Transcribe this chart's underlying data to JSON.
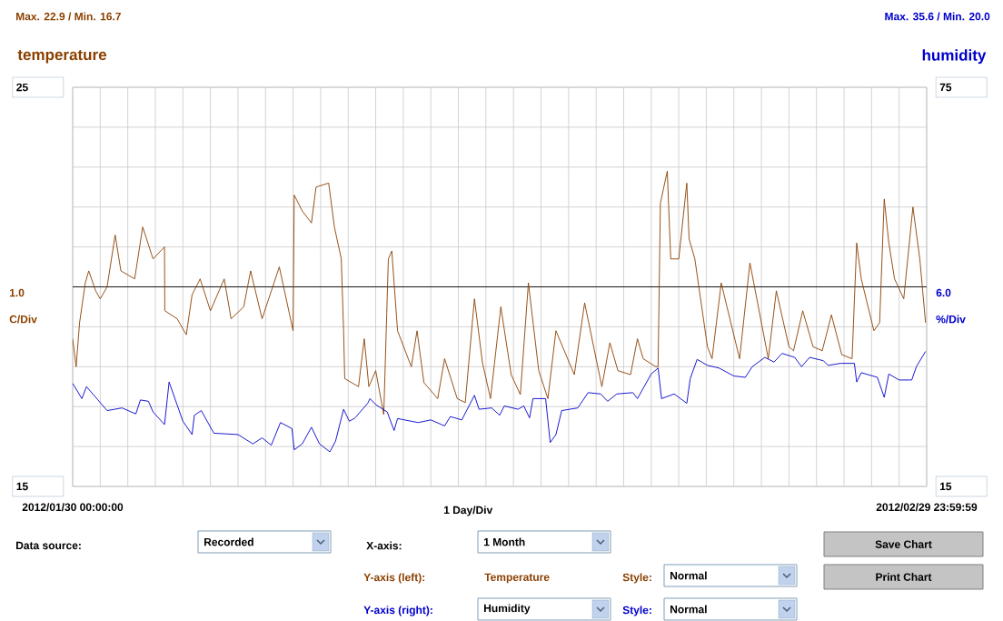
{
  "chart_data": {
    "type": "line",
    "xlabel": "1 Day/Div",
    "ylabel": "temperature",
    "y2label": "humidity",
    "xlim": [
      "2012-01-30T00:00",
      "2012-02-29T23:59"
    ],
    "xticks": [
      {
        "value": "2012-01-30T00:00",
        "label": "2012/01/30 00:00:00"
      },
      {
        "value": "2012-01-31T00:00",
        "label": null
      },
      {
        "value": "2012-02-01T00:00",
        "label": null
      },
      {
        "value": "2012-02-02T00:00",
        "label": null
      },
      {
        "value": "2012-02-03T00:00",
        "label": null
      },
      {
        "value": "2012-02-04T00:00",
        "label": null
      },
      {
        "value": "2012-02-05T00:00",
        "label": null
      },
      {
        "value": "2012-02-06T00:00",
        "label": null
      },
      {
        "value": "2012-02-07T00:00",
        "label": null
      },
      {
        "value": "2012-02-08T00:00",
        "label": null
      },
      {
        "value": "2012-02-09T00:00",
        "label": null
      },
      {
        "value": "2012-02-10T00:00",
        "label": null
      },
      {
        "value": "2012-02-11T00:00",
        "label": null
      },
      {
        "value": "2012-02-12T00:00",
        "label": null
      },
      {
        "value": "2012-02-13T00:00",
        "label": null
      },
      {
        "value": "2012-02-14T00:00",
        "label": null
      },
      {
        "value": "2012-02-15T00:00",
        "label": null
      },
      {
        "value": "2012-02-16T00:00",
        "label": null
      },
      {
        "value": "2012-02-17T00:00",
        "label": null
      },
      {
        "value": "2012-02-18T00:00",
        "label": null
      },
      {
        "value": "2012-02-19T00:00",
        "label": null
      },
      {
        "value": "2012-02-20T00:00",
        "label": null
      },
      {
        "value": "2012-02-21T00:00",
        "label": null
      },
      {
        "value": "2012-02-22T00:00",
        "label": null
      },
      {
        "value": "2012-02-23T00:00",
        "label": null
      },
      {
        "value": "2012-02-24T00:00",
        "label": null
      },
      {
        "value": "2012-02-25T00:00",
        "label": null
      },
      {
        "value": "2012-02-26T00:00",
        "label": null
      },
      {
        "value": "2012-02-27T00:00",
        "label": null
      },
      {
        "value": "2012-02-28T00:00",
        "label": null
      },
      {
        "value": "2012-02-29T00:00",
        "label": null
      },
      {
        "value": "2012-02-29T23:59",
        "label": "2012/02/29 23:59:59"
      }
    ],
    "ylim": [
      15,
      25
    ],
    "yticks": [
      15,
      {
        "value": 16,
        "label": null
      },
      {
        "value": 17,
        "label": null
      },
      {
        "value": 18,
        "label": null
      },
      {
        "value": 19,
        "label": null
      },
      {
        "value": 20,
        "label": null
      },
      {
        "value": 21,
        "label": null
      },
      {
        "value": 22,
        "label": null
      },
      {
        "value": 23,
        "label": null
      },
      {
        "value": 24,
        "label": null
      },
      25
    ],
    "y2lim": [
      15,
      75
    ],
    "y2ticks": [
      15,
      75
    ],
    "grid": true,
    "ref_lines": [
      {
        "axis": "y",
        "value": 20,
        "color": "#000000"
      }
    ],
    "series": [
      {
        "color": "#8b4000",
        "x": [
          "2012-01-30T00:00",
          "2012-01-30T03:00",
          "2012-01-30T06:00",
          "2012-01-30T11:00",
          "2012-01-30T14:00",
          "2012-01-30T20:00",
          "2012-01-31T00:00",
          "2012-01-31T06:00",
          "2012-01-31T13:00",
          "2012-01-31T18:00",
          "2012-02-01T06:00",
          "2012-02-01T13:00",
          "2012-02-01T22:00",
          "2012-02-02T08:00",
          "2012-02-02T08:15",
          "2012-02-02T19:00",
          "2012-02-03T03:00",
          "2012-02-03T08:00",
          "2012-02-03T15:00",
          "2012-02-04T00:00",
          "2012-02-04T12:00",
          "2012-02-04T18:00",
          "2012-02-05T05:00",
          "2012-02-05T11:00",
          "2012-02-05T21:00",
          "2012-02-06T12:00",
          "2012-02-07T00:00",
          "2012-02-07T01:00",
          "2012-02-07T08:00",
          "2012-02-07T16:00",
          "2012-02-07T20:00",
          "2012-02-08T07:00",
          "2012-02-08T12:00",
          "2012-02-08T18:00",
          "2012-02-08T20:00",
          "2012-02-08T21:00",
          "2012-02-09T09:00",
          "2012-02-09T14:00",
          "2012-02-09T18:00",
          "2012-02-10T00:00",
          "2012-02-10T07:00",
          "2012-02-10T11:00",
          "2012-02-10T14:00",
          "2012-02-10T19:00",
          "2012-02-11T07:00",
          "2012-02-11T12:00",
          "2012-02-11T18:00",
          "2012-02-12T06:00",
          "2012-02-12T12:00",
          "2012-02-12T23:00",
          "2012-02-13T06:00",
          "2012-02-13T14:00",
          "2012-02-13T21:00",
          "2012-02-14T04:00",
          "2012-02-14T13:00",
          "2012-02-14T22:00",
          "2012-02-15T06:00",
          "2012-02-15T13:00",
          "2012-02-15T22:00",
          "2012-02-16T06:00",
          "2012-02-16T13:00",
          "2012-02-17T05:00",
          "2012-02-17T14:00",
          "2012-02-18T05:00",
          "2012-02-18T12:00",
          "2012-02-18T19:00",
          "2012-02-19T06:00",
          "2012-02-19T12:00",
          "2012-02-19T17:00",
          "2012-02-20T04:00",
          "2012-02-20T06:00",
          "2012-02-20T08:00",
          "2012-02-20T14:00",
          "2012-02-20T17:00",
          "2012-02-21T00:00",
          "2012-02-21T07:00",
          "2012-02-21T09:00",
          "2012-02-21T14:00",
          "2012-02-22T01:00",
          "2012-02-22T05:00",
          "2012-02-22T13:00",
          "2012-02-22T18:00",
          "2012-02-23T05:00",
          "2012-02-23T14:00",
          "2012-02-24T06:00",
          "2012-02-24T13:00",
          "2012-02-25T00:00",
          "2012-02-25T04:00",
          "2012-02-25T12:00",
          "2012-02-25T21:00",
          "2012-02-26T05:00",
          "2012-02-26T13:00",
          "2012-02-26T22:00",
          "2012-02-27T07:00",
          "2012-02-27T11:00",
          "2012-02-27T15:00",
          "2012-02-28T02:00",
          "2012-02-28T07:00",
          "2012-02-28T11:00",
          "2012-02-28T15:00",
          "2012-02-28T20:00",
          "2012-02-29T04:00",
          "2012-02-29T12:00",
          "2012-02-29T18:00",
          "2012-02-29T23:00"
        ],
        "values": [
          18.7,
          18.0,
          19.1,
          20.1,
          20.4,
          19.9,
          19.7,
          20.0,
          21.3,
          20.4,
          20.2,
          21.5,
          20.7,
          21.0,
          19.4,
          19.2,
          18.8,
          19.8,
          20.2,
          19.4,
          20.2,
          19.2,
          19.5,
          20.4,
          19.2,
          20.5,
          18.9,
          22.3,
          21.9,
          21.6,
          22.5,
          22.6,
          21.5,
          20.7,
          18.9,
          17.7,
          17.5,
          18.7,
          17.5,
          17.9,
          16.8,
          20.7,
          20.9,
          18.9,
          18.0,
          18.9,
          17.6,
          17.2,
          18.2,
          17.2,
          17.1,
          19.7,
          18.1,
          17.2,
          19.5,
          17.8,
          17.3,
          20.1,
          17.9,
          17.2,
          18.9,
          17.8,
          19.6,
          17.5,
          18.6,
          17.9,
          17.8,
          18.7,
          18.2,
          18.0,
          18.0,
          22.1,
          22.9,
          20.7,
          20.7,
          22.6,
          21.2,
          20.7,
          18.5,
          18.2,
          20.1,
          19.5,
          18.2,
          20.6,
          18.2,
          19.9,
          18.5,
          18.4,
          19.4,
          18.5,
          18.4,
          19.3,
          18.3,
          18.2,
          21.1,
          20.2,
          18.9,
          19.1,
          22.2,
          21.1,
          20.2,
          19.7,
          22.0,
          20.7,
          19.1
        ]
      },
      {
        "color": "#0000cc",
        "axis": "y2",
        "x": [
          "2012-01-30T00:00",
          "2012-01-30T08:00",
          "2012-01-30T12:00",
          "2012-01-30T22:00",
          "2012-01-31T06:00",
          "2012-01-31T19:00",
          "2012-02-01T07:00",
          "2012-02-01T11:00",
          "2012-02-01T18:00",
          "2012-02-01T22:00",
          "2012-02-02T08:00",
          "2012-02-02T12:00",
          "2012-02-03T00:00",
          "2012-02-03T08:00",
          "2012-02-03T10:00",
          "2012-02-03T16:00",
          "2012-02-04T03:00",
          "2012-02-05T00:00",
          "2012-02-05T13:00",
          "2012-02-05T21:00",
          "2012-02-06T05:00",
          "2012-02-06T13:00",
          "2012-02-06T23:00",
          "2012-02-07T01:00",
          "2012-02-07T08:00",
          "2012-02-07T16:00",
          "2012-02-07T23:00",
          "2012-02-08T08:00",
          "2012-02-08T13:00",
          "2012-02-08T20:00",
          "2012-02-09T01:00",
          "2012-02-09T06:00",
          "2012-02-09T17:00",
          "2012-02-09T19:00",
          "2012-02-10T00:00",
          "2012-02-10T10:00",
          "2012-02-10T16:00",
          "2012-02-10T19:00",
          "2012-02-11T13:00",
          "2012-02-12T00:00",
          "2012-02-12T12:00",
          "2012-02-12T17:00",
          "2012-02-13T03:00",
          "2012-02-13T14:00",
          "2012-02-13T18:00",
          "2012-02-14T05:00",
          "2012-02-14T12:00",
          "2012-02-14T16:00",
          "2012-02-15T04:00",
          "2012-02-15T09:00",
          "2012-02-15T14:00",
          "2012-02-15T17:00",
          "2012-02-16T04:00",
          "2012-02-16T08:00",
          "2012-02-16T13:00",
          "2012-02-16T18:00",
          "2012-02-17T08:00",
          "2012-02-17T17:00",
          "2012-02-18T04:00",
          "2012-02-18T10:00",
          "2012-02-18T18:00",
          "2012-02-19T08:00",
          "2012-02-19T12:00",
          "2012-02-20T00:00",
          "2012-02-20T06:00",
          "2012-02-20T09:00",
          "2012-02-20T20:00",
          "2012-02-21T07:00",
          "2012-02-21T10:00",
          "2012-02-21T16:00",
          "2012-02-22T01:00",
          "2012-02-22T11:00",
          "2012-02-23T00:00",
          "2012-02-23T10:00",
          "2012-02-23T16:00",
          "2012-02-24T03:00",
          "2012-02-24T11:00",
          "2012-02-24T18:00",
          "2012-02-25T05:00",
          "2012-02-25T11:00",
          "2012-02-25T18:00",
          "2012-02-26T06:00",
          "2012-02-26T10:00",
          "2012-02-26T21:00",
          "2012-02-27T09:00",
          "2012-02-27T11:00",
          "2012-02-27T15:00",
          "2012-02-28T05:00",
          "2012-02-28T11:00",
          "2012-02-28T15:00",
          "2012-02-29T00:00",
          "2012-02-29T11:00",
          "2012-02-29T15:00",
          "2012-02-29T23:00"
        ],
        "values": [
          30.5,
          28.2,
          30.0,
          28.0,
          26.4,
          26.8,
          25.9,
          28.0,
          27.8,
          26.2,
          24.3,
          30.7,
          24.8,
          22.8,
          25.7,
          26.4,
          23.0,
          22.8,
          21.4,
          22.3,
          21.2,
          24.6,
          23.7,
          20.5,
          21.4,
          23.9,
          21.4,
          20.2,
          21.8,
          26.6,
          24.8,
          25.3,
          27.5,
          28.2,
          27.3,
          26.2,
          23.4,
          25.2,
          24.6,
          25.0,
          24.1,
          25.5,
          25.0,
          28.7,
          26.6,
          26.8,
          25.7,
          27.1,
          26.6,
          27.1,
          25.3,
          28.2,
          28.2,
          21.6,
          22.8,
          26.4,
          26.8,
          29.1,
          28.9,
          27.8,
          28.9,
          29.1,
          28.2,
          31.9,
          32.8,
          28.2,
          28.9,
          27.5,
          31.2,
          34.1,
          33.2,
          32.8,
          31.6,
          31.4,
          33.0,
          34.4,
          33.7,
          35.0,
          34.4,
          33.0,
          34.4,
          33.9,
          33.2,
          33.5,
          33.5,
          30.7,
          32.1,
          31.4,
          28.4,
          31.9,
          31.0,
          31.0,
          33.0,
          35.3
        ]
      }
    ],
    "annotations": [
      "Max. 22.9 / Min. 16.7",
      "Max. 35.6 / Min. 20.0",
      "1.0",
      "C/Div",
      "6.0",
      "%/Div",
      "Data source:",
      "Recorded",
      "X-axis:",
      "1 Month",
      "Y-axis (left):",
      "Temperature",
      "Style:",
      "Normal",
      "Y-axis (right):",
      "Humidity",
      "Style:",
      "Normal",
      "Save Chart",
      "Print Chart"
    ]
  }
}
